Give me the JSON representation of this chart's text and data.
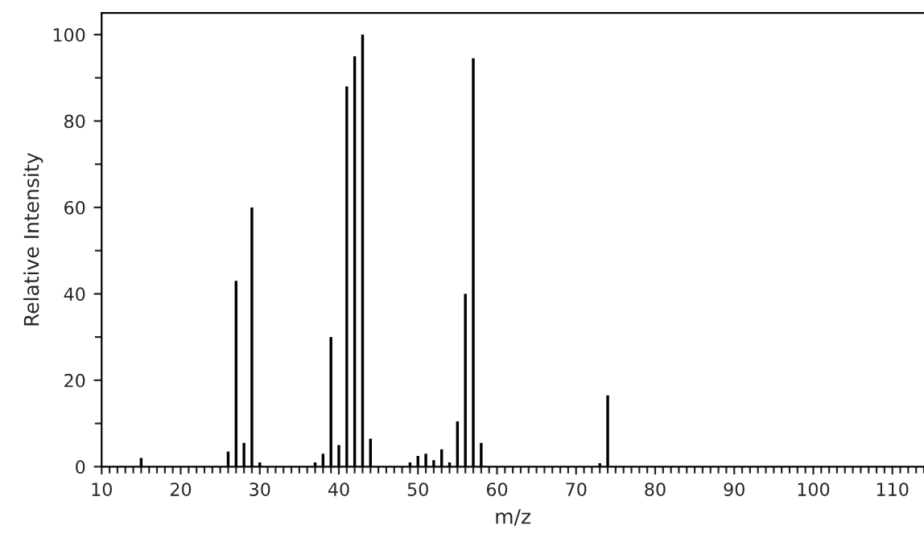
{
  "chart_data": {
    "type": "bar",
    "xlabel": "m/z",
    "ylabel": "Relative Intensity",
    "x": [
      15,
      26,
      27,
      28,
      29,
      30,
      37,
      38,
      39,
      40,
      41,
      42,
      43,
      44,
      49,
      50,
      51,
      52,
      53,
      54,
      55,
      56,
      57,
      58,
      73,
      74
    ],
    "values": [
      2,
      3.5,
      43,
      5.5,
      60,
      1,
      1,
      3,
      30,
      5,
      88,
      95,
      100,
      6.5,
      1,
      2.5,
      3,
      1.5,
      4,
      1,
      10.5,
      40,
      94.5,
      5.5,
      0.8,
      16.5
    ],
    "color": "#000000",
    "xlim": [
      10,
      114
    ],
    "xticks": [
      10,
      20,
      30,
      40,
      50,
      60,
      70,
      80,
      90,
      100,
      110
    ],
    "ylim": [
      0,
      105
    ],
    "yticks": [
      0,
      20,
      40,
      60,
      80,
      100
    ],
    "grid": false,
    "legend": false
  }
}
